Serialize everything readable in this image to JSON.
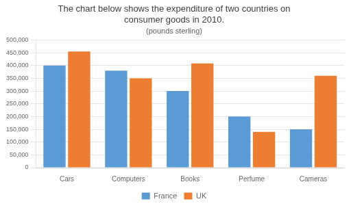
{
  "chart_data": {
    "type": "bar",
    "title": [
      "The chart below shows the expenditure of two countries on",
      "consumer goods in 2010."
    ],
    "subtitle": "(pounds sterling)",
    "categories": [
      "Cars",
      "Computers",
      "Books",
      "Perfume",
      "Cameras"
    ],
    "series": [
      {
        "name": "France",
        "color": "#5B9BD5",
        "values": [
          400000,
          380000,
          300000,
          200000,
          150000
        ]
      },
      {
        "name": "UK",
        "color": "#ED7D31",
        "values": [
          455000,
          350000,
          408000,
          140000,
          360000
        ]
      }
    ],
    "ylim": [
      0,
      500000
    ],
    "yticks": [
      0,
      {
        "value": 50000,
        "label": "50,000"
      },
      {
        "value": 100000,
        "label": "100,000"
      },
      {
        "value": 150000,
        "label": "150,000"
      },
      {
        "value": 200000,
        "label": "200,000"
      },
      {
        "value": 250000,
        "label": "250,000"
      },
      {
        "value": 300000,
        "label": "300,000"
      },
      {
        "value": 350000,
        "label": "350,000"
      },
      {
        "value": 400000,
        "label": "400,000"
      },
      {
        "value": 450000,
        "label": "450,000"
      },
      {
        "value": 500000,
        "label": "500,000"
      }
    ],
    "grid": true,
    "legend": "bottom"
  }
}
